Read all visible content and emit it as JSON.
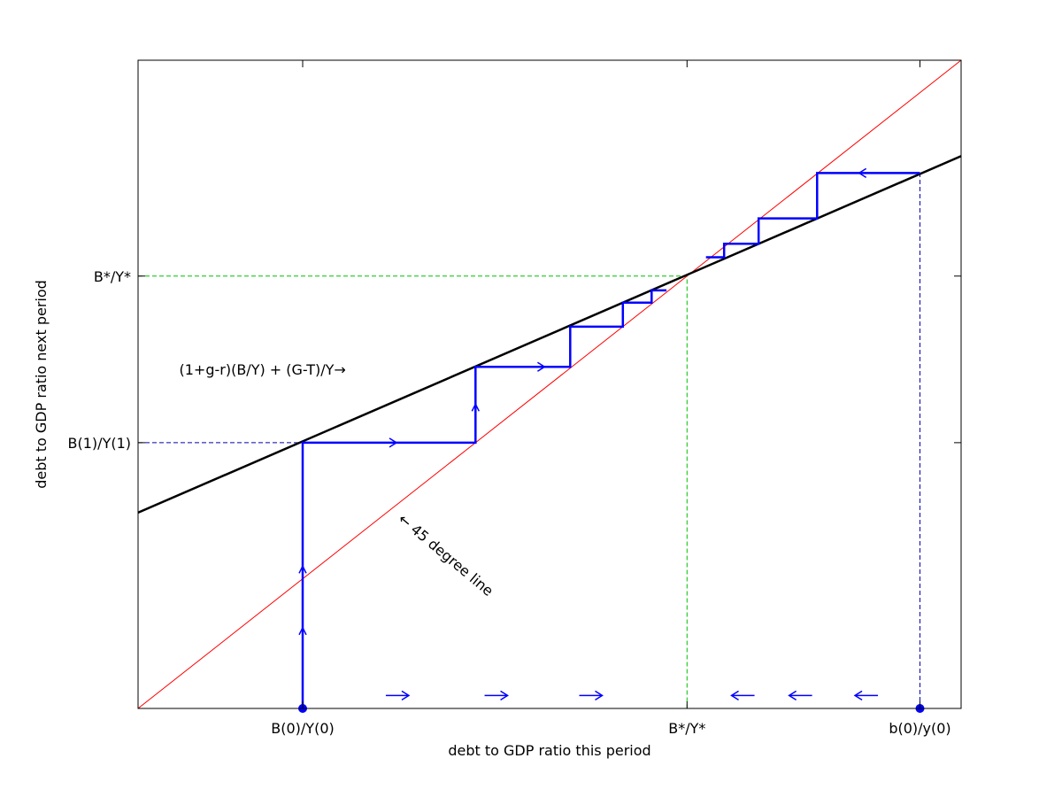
{
  "chart_data": {
    "type": "line",
    "title": "",
    "xlabel": "debt to GDP ratio this period",
    "ylabel": "debt to GDP ratio next period",
    "xlim": [
      0,
      1
    ],
    "ylim": [
      0,
      1
    ],
    "x_tick_labels": [
      {
        "value": 0.2,
        "label": "B(0)/Y(0)"
      },
      {
        "value": 0.667,
        "label": "B*/Y*"
      },
      {
        "value": 0.95,
        "label": "b(0)/y(0)"
      }
    ],
    "y_tick_labels": [
      {
        "value": 0.41,
        "label": "B(1)/Y(1)"
      },
      {
        "value": 0.667,
        "label": "B*/Y*"
      }
    ],
    "series": [
      {
        "name": "45 degree line",
        "color": "#ff0000",
        "points": [
          [
            0,
            0
          ],
          [
            1,
            1
          ]
        ]
      },
      {
        "name": "(1+g-r)(B/Y) + (G-T)/Y",
        "color": "#000000",
        "points": [
          [
            0,
            0.302
          ],
          [
            1,
            0.852
          ]
        ]
      },
      {
        "name": "",
        "color": "#0000ff",
        "points": [
          [
            0.2,
            0
          ],
          [
            0.2,
            0.41
          ],
          [
            0.41,
            0.41
          ],
          [
            0.41,
            0.527
          ],
          [
            0.525,
            0.527
          ],
          [
            0.525,
            0.589
          ],
          [
            0.589,
            0.589
          ],
          [
            0.589,
            0.626
          ],
          [
            0.624,
            0.626
          ],
          [
            0.624,
            0.645
          ],
          [
            0.642,
            0.645
          ]
        ]
      },
      {
        "name": "",
        "color": "#0000ff",
        "points": [
          [
            0.95,
            0.826
          ],
          [
            0.825,
            0.826
          ],
          [
            0.825,
            0.756
          ],
          [
            0.754,
            0.756
          ],
          [
            0.754,
            0.717
          ],
          [
            0.712,
            0.717
          ],
          [
            0.712,
            0.696
          ],
          [
            0.69,
            0.696
          ]
        ]
      }
    ],
    "reference_lines": [
      {
        "color": "#00c000",
        "points": [
          [
            0,
            0.667
          ],
          [
            0.667,
            0.667
          ],
          [
            0.667,
            0
          ]
        ]
      },
      {
        "color": "#0000aa",
        "points": [
          [
            0,
            0.41
          ],
          [
            0.2,
            0.41
          ]
        ]
      },
      {
        "color": "#0000aa",
        "points": [
          [
            0.95,
            0
          ],
          [
            0.95,
            0.826
          ]
        ]
      }
    ],
    "start_points": [
      [
        0.2,
        0
      ],
      [
        0.95,
        0
      ]
    ],
    "arrows": [
      {
        "x": 0.2,
        "y": 0.21,
        "dir": "up"
      },
      {
        "x": 0.2,
        "y": 0.115,
        "dir": "up"
      },
      {
        "x": 0.41,
        "y": 0.46,
        "dir": "up"
      },
      {
        "x": 0.3,
        "y": 0.41,
        "dir": "right"
      },
      {
        "x": 0.48,
        "y": 0.527,
        "dir": "right"
      },
      {
        "x": 0.89,
        "y": 0.826,
        "dir": "left"
      },
      {
        "x": 0.315,
        "y": 0.02,
        "dir": "right"
      },
      {
        "x": 0.435,
        "y": 0.02,
        "dir": "right"
      },
      {
        "x": 0.55,
        "y": 0.02,
        "dir": "right"
      },
      {
        "x": 0.735,
        "y": 0.02,
        "dir": "left"
      },
      {
        "x": 0.805,
        "y": 0.02,
        "dir": "left"
      },
      {
        "x": 0.885,
        "y": 0.02,
        "dir": "left"
      }
    ],
    "annotations": [
      {
        "text": "(1+g-r)(B/Y) + (G-T)/Y→",
        "x": 0.05,
        "y": 0.515
      },
      {
        "text": "← 45 degree line",
        "x": 0.315,
        "y": 0.29,
        "rotate": 40
      }
    ],
    "grid": false
  }
}
